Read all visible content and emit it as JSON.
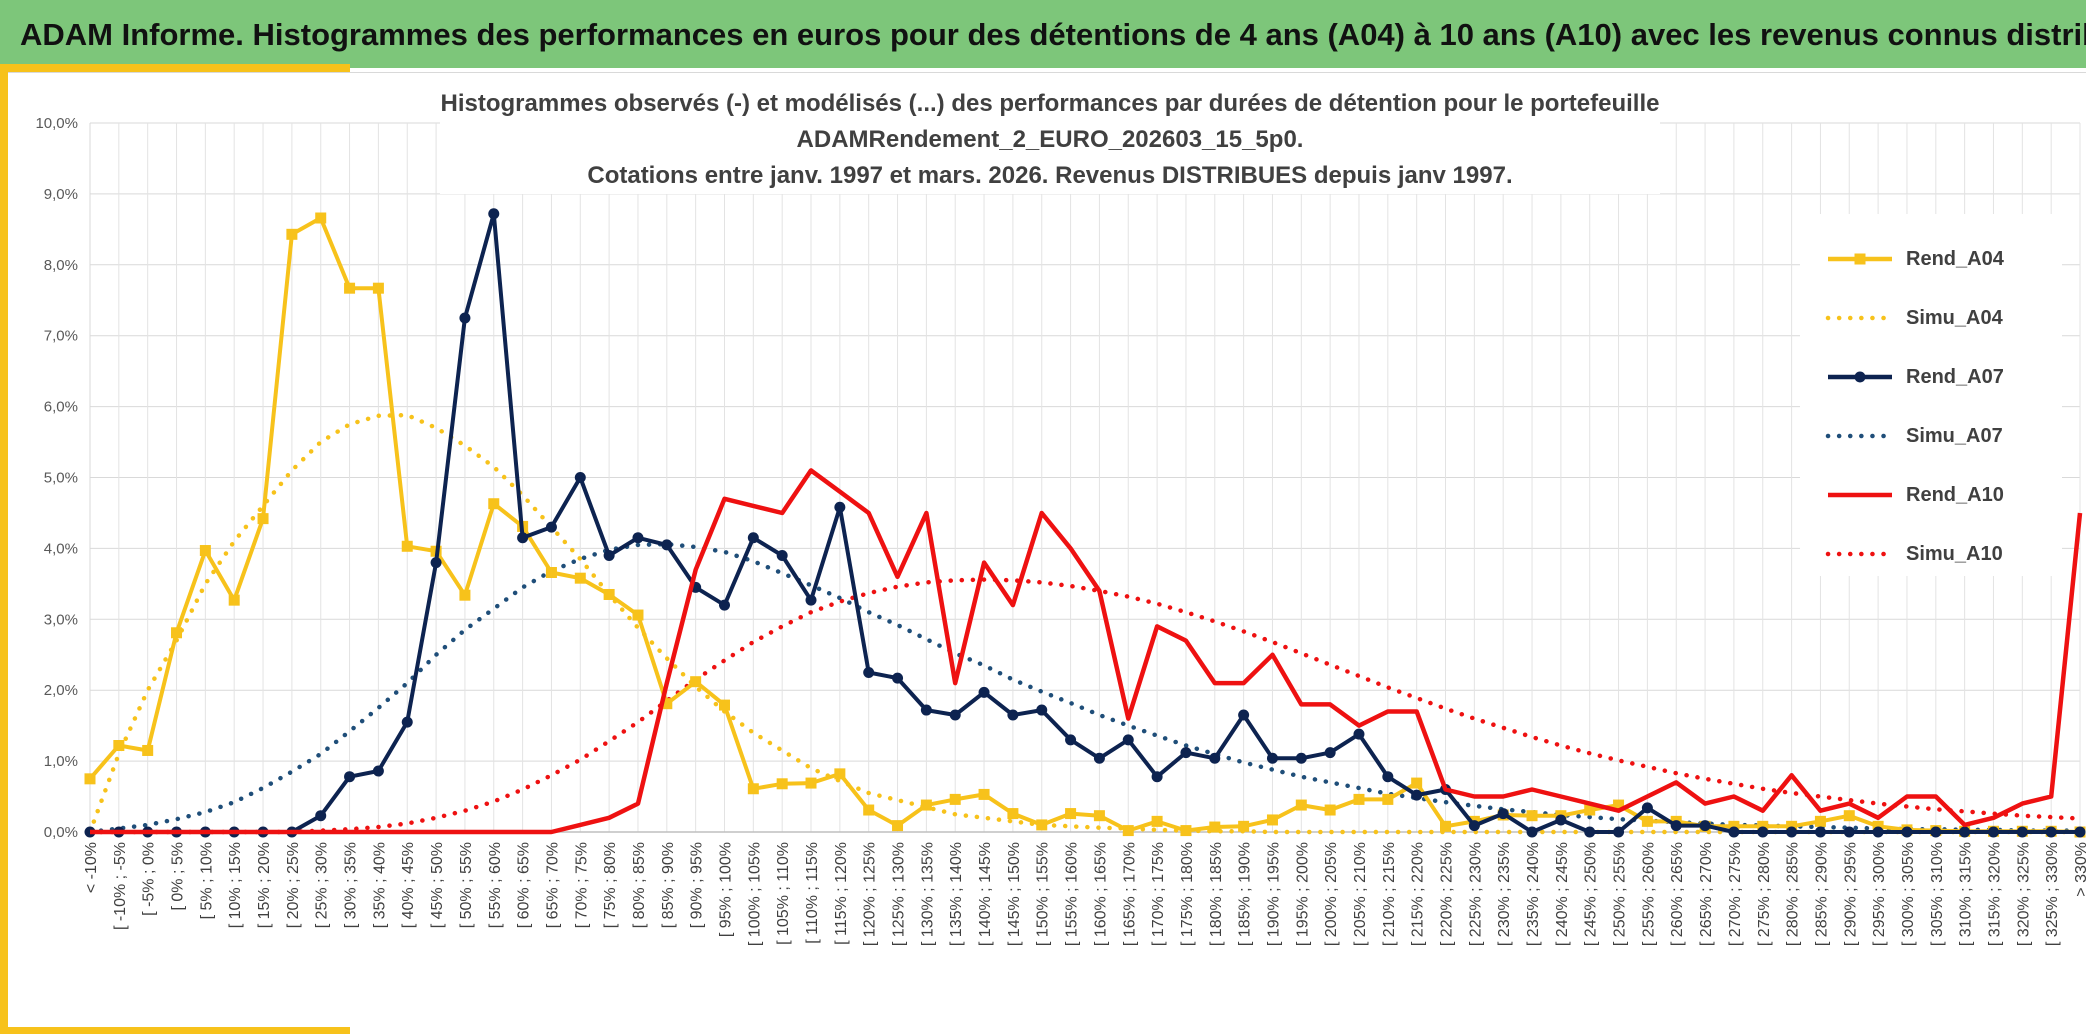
{
  "header": {
    "title": "ADAM Informe. Histogrammes des performances en euros pour des détentions de 4 ans (A04) à 10 ans (A10) avec les revenus connus distribués"
  },
  "colors": {
    "banner": "#7dc67a",
    "accent": "#f7c21b",
    "A04": "#f7c21b",
    "A07": "#0d2350",
    "A07_simu": "#1f4e79",
    "A10": "#ee1111"
  },
  "chart_data": {
    "type": "line",
    "title_lines": [
      "Histogrammes observés (-) et modélisés (...) des performances par durées de détention pour le portefeuille",
      "ADAMRendement_2_EURO_202603_15_5p0.",
      "Cotations entre janv. 1997 et mars. 2026. Revenus DISTRIBUES depuis janv 1997."
    ],
    "xlabel": "",
    "ylabel": "",
    "ylim": [
      0,
      10
    ],
    "y_ticks": [
      "0,0%",
      "1,0%",
      "2,0%",
      "3,0%",
      "4,0%",
      "5,0%",
      "6,0%",
      "7,0%",
      "8,0%",
      "9,0%",
      "10,0%"
    ],
    "grid": true,
    "legend_position": "right",
    "categories": [
      "< -10%",
      "[ -10% ; -5%",
      "[ -5% ; 0%",
      "[ 0% ; 5%",
      "[ 5% ; 10%",
      "[ 10% ; 15%",
      "[ 15% ; 20%",
      "[ 20% ; 25%",
      "[ 25% ; 30%",
      "[ 30% ; 35%",
      "[ 35% ; 40%",
      "[ 40% ; 45%",
      "[ 45% ; 50%",
      "[ 50% ; 55%",
      "[ 55% ; 60%",
      "[ 60% ; 65%",
      "[ 65% ; 70%",
      "[ 70% ; 75%",
      "[ 75% ; 80%",
      "[ 80% ; 85%",
      "[ 85% ; 90%",
      "[ 90% ; 95%",
      "[ 95% ; 100%",
      "[ 100% ; 105%",
      "[ 105% ; 110%",
      "[ 110% ; 115%",
      "[ 115% ; 120%",
      "[ 120% ; 125%",
      "[ 125% ; 130%",
      "[ 130% ; 135%",
      "[ 135% ; 140%",
      "[ 140% ; 145%",
      "[ 145% ; 150%",
      "[ 150% ; 155%",
      "[ 155% ; 160%",
      "[ 160% ; 165%",
      "[ 165% ; 170%",
      "[ 170% ; 175%",
      "[ 175% ; 180%",
      "[ 180% ; 185%",
      "[ 185% ; 190%",
      "[ 190% ; 195%",
      "[ 195% ; 200%",
      "[ 200% ; 205%",
      "[ 205% ; 210%",
      "[ 210% ; 215%",
      "[ 215% ; 220%",
      "[ 220% ; 225%",
      "[ 225% ; 230%",
      "[ 230% ; 235%",
      "[ 235% ; 240%",
      "[ 240% ; 245%",
      "[ 245% ; 250%",
      "[ 250% ; 255%",
      "[ 255% ; 260%",
      "[ 260% ; 265%",
      "[ 265% ; 270%",
      "[ 270% ; 275%",
      "[ 275% ; 280%",
      "[ 280% ; 285%",
      "[ 285% ; 290%",
      "[ 290% ; 295%",
      "[ 295% ; 300%",
      "[ 300% ; 305%",
      "[ 305% ; 310%",
      "[ 310% ; 315%",
      "[ 315% ; 320%",
      "[ 320% ; 325%",
      "[ 325% ; 330%",
      "> 330%"
    ],
    "series": [
      {
        "name": "Rend_A04",
        "style": "solid",
        "marker": "square",
        "color": "#f7c21b",
        "values": [
          0.75,
          1.22,
          1.15,
          2.81,
          3.97,
          3.27,
          4.42,
          8.43,
          8.66,
          7.67,
          7.67,
          4.03,
          3.96,
          3.34,
          4.63,
          4.31,
          3.66,
          3.58,
          3.35,
          3.06,
          1.81,
          2.12,
          1.79,
          0.61,
          0.68,
          0.69,
          0.82,
          0.31,
          0.09,
          0.38,
          0.46,
          0.53,
          0.26,
          0.1,
          0.26,
          0.23,
          0.02,
          0.15,
          0.02,
          0.07,
          0.08,
          0.17,
          0.38,
          0.31,
          0.46,
          0.46,
          0.69,
          0.08,
          0.15,
          0.24,
          0.23,
          0.23,
          0.31,
          0.38,
          0.15,
          0.15,
          0.08,
          0.08,
          0.08,
          0.08,
          0.15,
          0.23,
          0.08,
          0.03,
          0.02,
          0.01,
          0.01,
          0.01,
          0.01,
          0.0
        ]
      },
      {
        "name": "Simu_A04",
        "style": "dotted",
        "marker": "none",
        "color": "#f7c21b",
        "values": [
          0.0,
          1.1,
          2.0,
          2.7,
          3.5,
          4.1,
          4.6,
          5.1,
          5.5,
          5.75,
          5.87,
          5.88,
          5.7,
          5.45,
          5.15,
          4.75,
          4.3,
          3.85,
          3.35,
          2.88,
          2.45,
          2.05,
          1.7,
          1.4,
          1.15,
          0.9,
          0.72,
          0.55,
          0.45,
          0.35,
          0.25,
          0.2,
          0.15,
          0.1,
          0.08,
          0.06,
          0.05,
          0.03,
          0.02,
          0.01,
          0.01,
          0.0,
          0.0,
          0.0,
          0.0,
          0.0,
          0.0,
          0.0,
          0.0,
          0.0,
          0.0,
          0.0,
          0.0,
          0.0,
          0.0,
          0.0,
          0.0,
          0.0,
          0.0,
          0.0,
          0.0,
          0.0,
          0.0,
          0.0,
          0.0,
          0.0,
          0.0,
          0.0,
          0.0,
          0.0
        ]
      },
      {
        "name": "Rend_A07",
        "style": "solid",
        "marker": "circle",
        "color": "#0d2350",
        "values": [
          0.0,
          0.0,
          0.0,
          0.0,
          0.0,
          0.0,
          0.0,
          0.0,
          0.23,
          0.78,
          0.86,
          1.55,
          3.8,
          7.25,
          8.72,
          4.15,
          4.3,
          5.0,
          3.9,
          4.15,
          4.05,
          3.45,
          3.2,
          4.15,
          3.9,
          3.27,
          4.58,
          2.25,
          2.17,
          1.72,
          1.65,
          1.97,
          1.65,
          1.72,
          1.3,
          1.04,
          1.3,
          0.78,
          1.12,
          1.04,
          1.65,
          1.04,
          1.04,
          1.12,
          1.38,
          0.78,
          0.52,
          0.6,
          0.09,
          0.26,
          0.0,
          0.17,
          0.0,
          0.0,
          0.34,
          0.09,
          0.09,
          0.0,
          0.0,
          0.0,
          0.0,
          0.0,
          0.0,
          0.0,
          0.0,
          0.0,
          0.0,
          0.0,
          0.0,
          0.0
        ]
      },
      {
        "name": "Simu_A07",
        "style": "dotted",
        "marker": "none",
        "color": "#1f4e79",
        "values": [
          0.0,
          0.05,
          0.1,
          0.18,
          0.28,
          0.42,
          0.62,
          0.85,
          1.1,
          1.42,
          1.75,
          2.1,
          2.5,
          2.85,
          3.15,
          3.45,
          3.68,
          3.85,
          3.98,
          4.05,
          4.06,
          4.02,
          3.95,
          3.82,
          3.65,
          3.48,
          3.3,
          3.1,
          2.92,
          2.72,
          2.52,
          2.35,
          2.15,
          1.98,
          1.82,
          1.65,
          1.5,
          1.36,
          1.22,
          1.1,
          0.98,
          0.88,
          0.78,
          0.7,
          0.62,
          0.54,
          0.48,
          0.42,
          0.37,
          0.32,
          0.28,
          0.24,
          0.21,
          0.18,
          0.16,
          0.14,
          0.12,
          0.1,
          0.09,
          0.08,
          0.07,
          0.06,
          0.05,
          0.04,
          0.04,
          0.03,
          0.03,
          0.02,
          0.02,
          0.02
        ]
      },
      {
        "name": "Rend_A10",
        "style": "solid",
        "marker": "none",
        "color": "#ee1111",
        "values": [
          0.0,
          0.0,
          0.0,
          0.0,
          0.0,
          0.0,
          0.0,
          0.0,
          0.0,
          0.0,
          0.0,
          0.0,
          0.0,
          0.0,
          0.0,
          0.0,
          0.0,
          0.1,
          0.2,
          0.4,
          2.1,
          3.7,
          4.7,
          4.6,
          4.5,
          5.1,
          4.8,
          4.5,
          3.6,
          4.5,
          2.1,
          3.8,
          3.2,
          4.5,
          4.0,
          3.4,
          1.6,
          2.9,
          2.7,
          2.1,
          2.1,
          2.5,
          1.8,
          1.8,
          1.5,
          1.7,
          1.7,
          0.6,
          0.5,
          0.5,
          0.6,
          0.5,
          0.4,
          0.3,
          0.5,
          0.7,
          0.4,
          0.5,
          0.3,
          0.8,
          0.3,
          0.4,
          0.2,
          0.5,
          0.5,
          0.1,
          0.2,
          0.4,
          0.5,
          4.5
        ]
      },
      {
        "name": "Simu_A10",
        "style": "dotted",
        "marker": "none",
        "color": "#ee1111",
        "values": [
          0.0,
          0.0,
          0.0,
          0.0,
          0.0,
          0.0,
          0.0,
          0.0,
          0.02,
          0.04,
          0.07,
          0.12,
          0.2,
          0.3,
          0.43,
          0.6,
          0.8,
          1.02,
          1.28,
          1.55,
          1.85,
          2.15,
          2.42,
          2.68,
          2.9,
          3.1,
          3.25,
          3.37,
          3.46,
          3.52,
          3.55,
          3.56,
          3.55,
          3.52,
          3.47,
          3.4,
          3.32,
          3.22,
          3.1,
          2.97,
          2.83,
          2.68,
          2.52,
          2.36,
          2.2,
          2.04,
          1.89,
          1.74,
          1.6,
          1.47,
          1.34,
          1.22,
          1.11,
          1.01,
          0.92,
          0.83,
          0.75,
          0.68,
          0.61,
          0.55,
          0.5,
          0.45,
          0.4,
          0.36,
          0.32,
          0.29,
          0.26,
          0.23,
          0.21,
          0.19
        ]
      }
    ]
  }
}
